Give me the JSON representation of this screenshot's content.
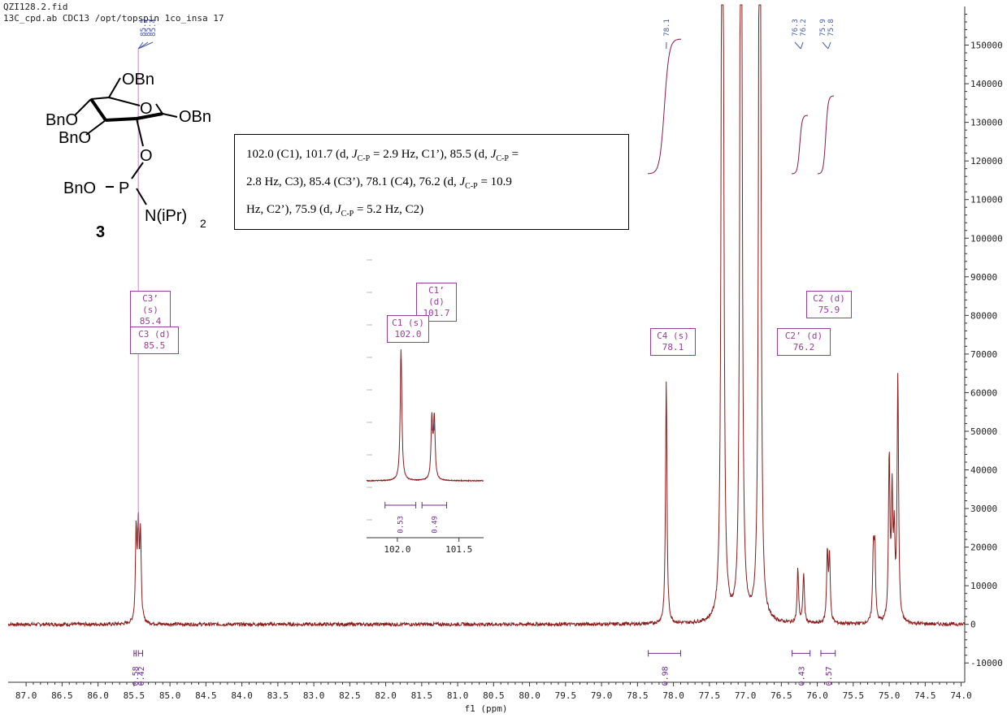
{
  "header": {
    "line1": "QZI128.2.fid",
    "line2": "13C_cpd.ab CDC13 /opt/topspin 1co_insa 17"
  },
  "compound": {
    "groups": [
      "OBn",
      "BnO",
      "BnO",
      "OBn",
      "BnO",
      "P",
      "O",
      "O",
      "O",
      "N(iPr)",
      "2"
    ],
    "number": "3"
  },
  "assignment_text": {
    "s1": "102.0 (C1), 101.7 (d, ",
    "j": "J",
    "cp": "C-P",
    "s2": " = 2.9 Hz, C1’), 85.5 (d, ",
    "s3": " =",
    "s4": "2.8 Hz, C3), 85.4 (C3’), 78.1 (C4), 76.2 (d, ",
    "s5": " = 10.9",
    "s6": "Hz, C2’), 75.9 (d, ",
    "s7": " = 5.2 Hz, C2)"
  },
  "peak_labels": [
    {
      "name": "C3’ (s)",
      "value": "85.4"
    },
    {
      "name": "C3 (d)",
      "value": "85.5"
    },
    {
      "name": "C1’ (d)",
      "value": "101.7"
    },
    {
      "name": "C1 (s)",
      "value": "102.0"
    },
    {
      "name": "C4 (s)",
      "value": "78.1"
    },
    {
      "name": "C2’ (d)",
      "value": "76.2"
    },
    {
      "name": "C2 (d)",
      "value": "75.9"
    }
  ],
  "chart_data": {
    "type": "line",
    "xlabel": "f1 (ppm)",
    "xlim": [
      87.25,
      73.95
    ],
    "ylim": [
      -15000,
      160000
    ],
    "x_ticks": [
      "87.0",
      "86.5",
      "86.0",
      "85.5",
      "85.0",
      "84.5",
      "84.0",
      "83.5",
      "83.0",
      "82.5",
      "82.0",
      "81.5",
      "81.0",
      "80.5",
      "80.0",
      "79.5",
      "79.0",
      "78.5",
      "78.0",
      "77.5",
      "77.0",
      "76.5",
      "76.0",
      "75.5",
      "75.0",
      "74.5",
      "74.0"
    ],
    "y_ticks": [
      "-10000",
      "0",
      "10000",
      "20000",
      "30000",
      "40000",
      "50000",
      "60000",
      "70000",
      "80000",
      "90000",
      "100000",
      "110000",
      "120000",
      "130000",
      "140000",
      "150000"
    ],
    "peaks": [
      {
        "ppm": 85.47,
        "height": 23000
      },
      {
        "ppm": 85.44,
        "height": 24000
      },
      {
        "ppm": 85.41,
        "height": 22000
      },
      {
        "ppm": 78.1,
        "height": 63000
      },
      {
        "ppm": 77.32,
        "height": 400000
      },
      {
        "ppm": 77.3,
        "height": 20000
      },
      {
        "ppm": 77.06,
        "height": 400000
      },
      {
        "ppm": 76.8,
        "height": 400000
      },
      {
        "ppm": 76.27,
        "height": 14000
      },
      {
        "ppm": 76.19,
        "height": 13000
      },
      {
        "ppm": 75.86,
        "height": 18000
      },
      {
        "ppm": 75.83,
        "height": 17000
      },
      {
        "ppm": 75.22,
        "height": 18000
      },
      {
        "ppm": 75.2,
        "height": 18000
      },
      {
        "ppm": 75.0,
        "height": 42000
      },
      {
        "ppm": 74.96,
        "height": 32000
      },
      {
        "ppm": 74.93,
        "height": 20000
      },
      {
        "ppm": 74.88,
        "height": 63000
      }
    ],
    "peak_picks": {
      "group1": [
        "85.5",
        "85.5",
        "85.4"
      ],
      "group2": [
        "78.1"
      ],
      "group3": [
        "76.3",
        "76.2"
      ],
      "group4": [
        "75.9",
        "75.8"
      ]
    },
    "integrals": [
      {
        "from": 85.5,
        "to": 85.47,
        "value": "0.58"
      },
      {
        "from": 85.44,
        "to": 85.38,
        "value": "0.42"
      },
      {
        "from": 78.35,
        "to": 77.9,
        "value": "0.98"
      },
      {
        "from": 76.35,
        "to": 76.1,
        "value": "0.43"
      },
      {
        "from": 75.95,
        "to": 75.75,
        "value": "0.57"
      }
    ],
    "inset": {
      "xlim": [
        102.25,
        101.3
      ],
      "x_ticks": [
        "102.0",
        "101.5"
      ],
      "peaks": [
        {
          "ppm": 101.97,
          "height": 68000
        },
        {
          "ppm": 101.72,
          "height": 31000
        },
        {
          "ppm": 101.7,
          "height": 31000
        }
      ],
      "integrals": [
        {
          "from": 102.1,
          "to": 101.85,
          "value": "0.53"
        },
        {
          "from": 101.8,
          "to": 101.6,
          "value": "0.49"
        }
      ]
    }
  }
}
